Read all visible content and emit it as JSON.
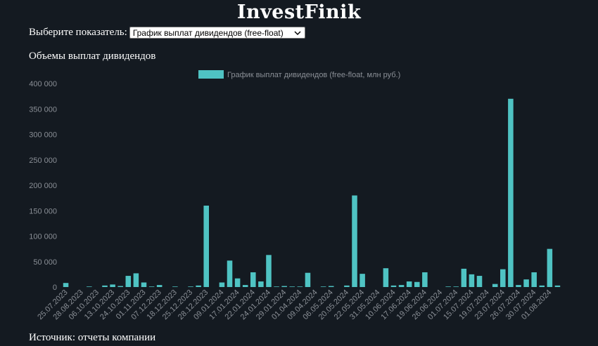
{
  "logo": "InvestFinik",
  "selector": {
    "label": "Выберите показатель:",
    "selected": "График выплат дивидендов (free-float)"
  },
  "section_title": "Объемы выплат дивидендов",
  "footer": "Источник: отчеты компании",
  "colors": {
    "background": "#141a21",
    "bar": "#4fc3c3",
    "tick_text": "#8a8f96"
  },
  "icons": {
    "dropdown": "chevron-down-icon"
  },
  "chart_data": {
    "type": "bar",
    "legend": "График выплат дивидендов (free-float, млн руб.)",
    "legend_position": "top-center",
    "ylim": [
      0,
      400000
    ],
    "yticks": [
      0,
      50000,
      100000,
      150000,
      200000,
      250000,
      300000,
      350000,
      400000
    ],
    "ytick_labels": [
      "0",
      "50 000",
      "100 000",
      "150 000",
      "200 000",
      "250 000",
      "300 000",
      "350 000",
      "400 000"
    ],
    "grid": false,
    "categories": [
      "25.07.2023",
      "",
      "28.08.2023",
      "",
      "06.10.2023",
      "",
      "13.10.2023",
      "",
      "24.10.2023",
      "",
      "01.11.2023",
      "",
      "07.12.2023",
      "",
      "18.12.2023",
      "",
      "25.12.2023",
      "",
      "28.12.2023",
      "",
      "09.01.2024",
      "",
      "17.01.2024",
      "",
      "22.01.2024",
      "",
      "24.01.2024",
      "",
      "29.01.2024",
      "",
      "01.04.2024",
      "",
      "09.04.2024",
      "",
      "06.05.2024",
      "",
      "20.05.2024",
      "",
      "22.05.2024",
      "",
      "31.05.2024",
      "",
      "10.06.2024",
      "",
      "17.06.2024",
      "",
      "19.06.2024",
      "",
      "26.06.2024",
      "",
      "01.07.2024",
      "",
      "15.07.2024",
      "",
      "19.07.2024",
      "",
      "23.07.2024",
      "",
      "26.07.2024",
      "",
      "30.07.2024",
      "",
      "01.08.2024",
      ""
    ],
    "xtick_labels": [
      "25.07.2023",
      "28.08.2023",
      "06.10.2023",
      "13.10.2023",
      "24.10.2023",
      "01.11.2023",
      "07.12.2023",
      "18.12.2023",
      "25.12.2023",
      "28.12.2023",
      "09.01.2024",
      "17.01.2024",
      "22.01.2024",
      "24.01.2024",
      "29.01.2024",
      "01.04.2024",
      "09.04.2024",
      "06.05.2024",
      "20.05.2024",
      "22.05.2024",
      "31.05.2024",
      "10.06.2024",
      "17.06.2024",
      "19.06.2024",
      "26.06.2024",
      "01.07.2024",
      "15.07.2024",
      "19.07.2024",
      "23.07.2024",
      "26.07.2024",
      "30.07.2024",
      "01.08.2024"
    ],
    "values": [
      8000,
      0,
      0,
      1000,
      0,
      3000,
      5000,
      2000,
      22000,
      27000,
      9000,
      1000,
      4000,
      0,
      1000,
      0,
      1000,
      3000,
      160000,
      0,
      9000,
      52000,
      17000,
      4000,
      29000,
      11000,
      63000,
      1000,
      2000,
      1000,
      1000,
      28000,
      0,
      1000,
      2000,
      0,
      3000,
      180000,
      26000,
      0,
      0,
      37000,
      3000,
      4000,
      11000,
      10000,
      29000,
      0,
      0,
      1000,
      1000,
      36000,
      25000,
      22000,
      0,
      6000,
      35000,
      370000,
      4000,
      15000,
      29000,
      3000,
      75000,
      3000
    ]
  }
}
